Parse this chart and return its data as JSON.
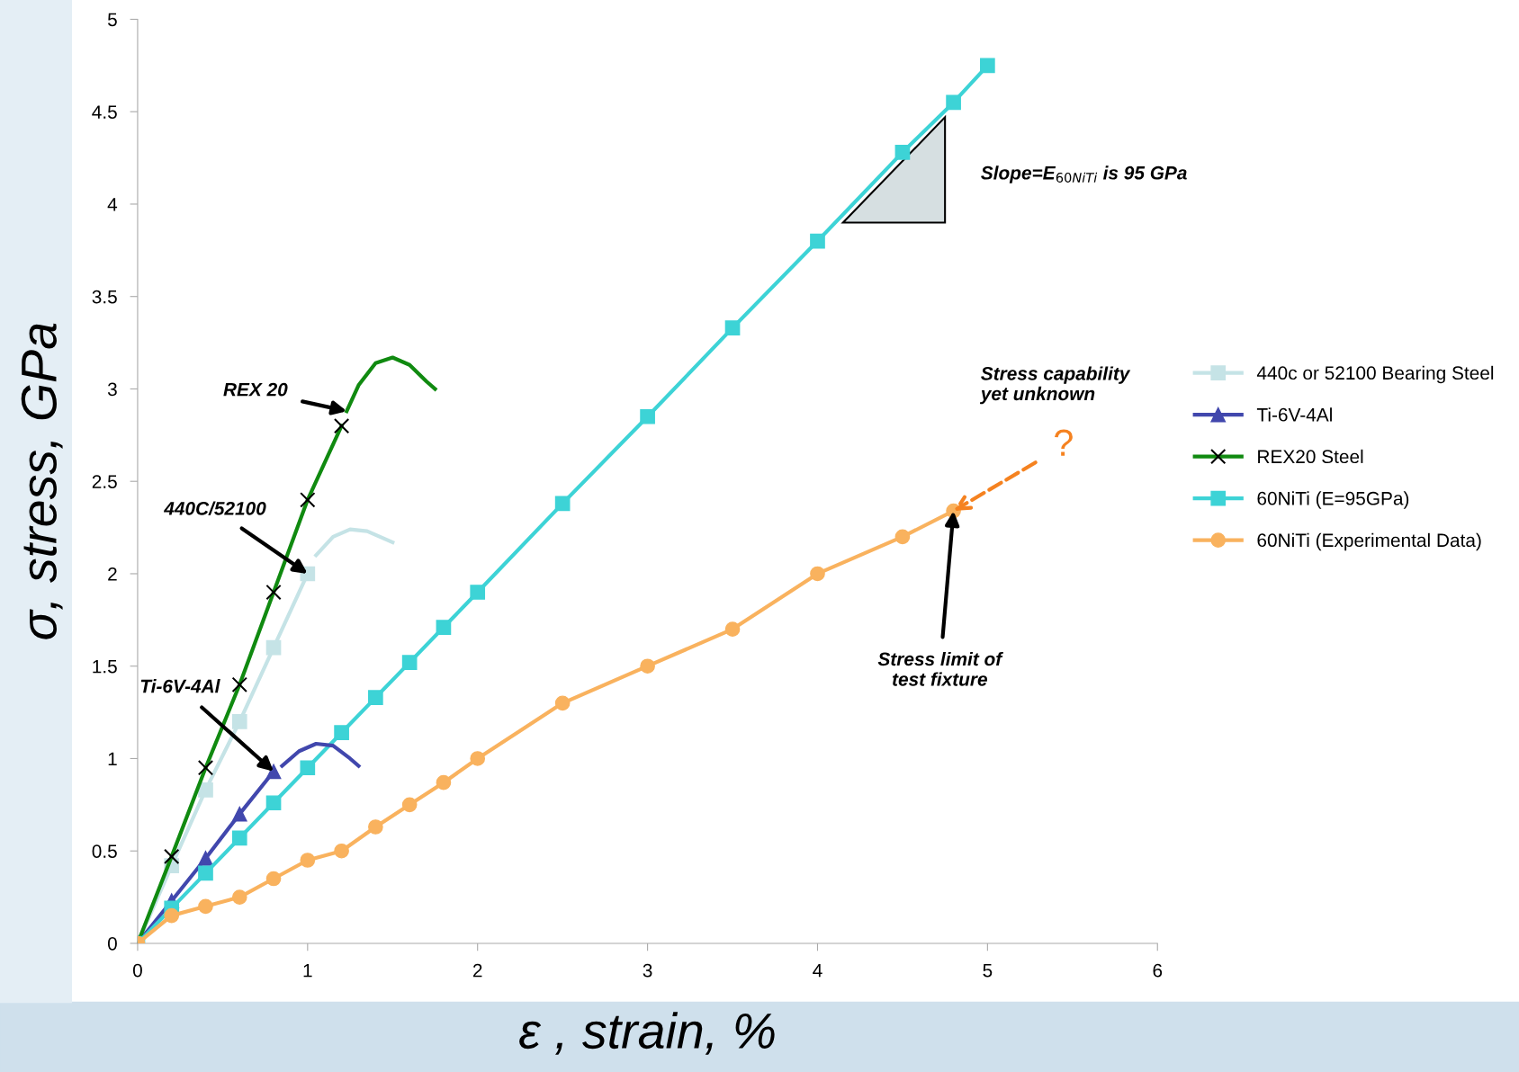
{
  "chart_data": {
    "type": "line",
    "xlabel": "ε , strain, %",
    "ylabel": "σ, stress, GPa",
    "xlim": [
      0,
      6
    ],
    "ylim": [
      0,
      5
    ],
    "xticks": [
      0,
      1,
      2,
      3,
      4,
      5,
      6
    ],
    "yticks": [
      0,
      0.5,
      1,
      1.5,
      2,
      2.5,
      3,
      3.5,
      4,
      4.5,
      5
    ],
    "grid": false,
    "legend": "right",
    "series": [
      {
        "name": "440c or 52100 Bearing Steel",
        "color": "#c5e3e6",
        "marker": "square",
        "x": [
          0,
          0.2,
          0.4,
          0.6,
          0.8,
          1.0
        ],
        "values": [
          0,
          0.42,
          0.83,
          1.2,
          1.6,
          2.0
        ]
      },
      {
        "name": "Ti-6V-4Al",
        "color": "#4147ad",
        "marker": "triangle",
        "x": [
          0,
          0.2,
          0.4,
          0.6,
          0.8
        ],
        "values": [
          0,
          0.23,
          0.46,
          0.7,
          0.93
        ]
      },
      {
        "name": "REX20 Steel",
        "color": "#108a10",
        "marker": "cross",
        "x": [
          0,
          0.2,
          0.4,
          0.6,
          0.8,
          1.0,
          1.2
        ],
        "values": [
          0,
          0.47,
          0.95,
          1.4,
          1.9,
          2.4,
          2.8
        ]
      },
      {
        "name": "60NiTi (E=95GPa)",
        "color": "#3dd3d6",
        "marker": "square",
        "x": [
          0,
          0.2,
          0.4,
          0.6,
          0.8,
          1.0,
          1.2,
          1.4,
          1.6,
          1.8,
          2.0,
          2.5,
          3.0,
          3.5,
          4.0,
          4.5,
          4.8,
          5.0
        ],
        "values": [
          0,
          0.19,
          0.38,
          0.57,
          0.76,
          0.95,
          1.14,
          1.33,
          1.52,
          1.71,
          1.9,
          2.38,
          2.85,
          3.33,
          3.8,
          4.28,
          4.55,
          4.75
        ]
      },
      {
        "name": "60NiTi (Experimental Data)",
        "color": "#f9b25e",
        "marker": "circle",
        "x": [
          0,
          0.2,
          0.4,
          0.6,
          0.8,
          1.0,
          1.2,
          1.4,
          1.6,
          1.8,
          2.0,
          2.5,
          3.0,
          3.5,
          4.0,
          4.5,
          4.8
        ],
        "values": [
          0,
          0.15,
          0.2,
          0.25,
          0.35,
          0.45,
          0.5,
          0.63,
          0.75,
          0.87,
          1.0,
          1.3,
          1.5,
          1.7,
          2.0,
          2.2,
          2.34
        ]
      },
      {
        "color": "#c5e3e6",
        "marker": "none",
        "x": [
          1.05,
          1.15,
          1.25,
          1.35,
          1.45,
          1.5
        ],
        "values": [
          2.1,
          2.2,
          2.24,
          2.23,
          2.19,
          2.17
        ]
      },
      {
        "color": "#4147ad",
        "marker": "none",
        "x": [
          0.85,
          0.95,
          1.05,
          1.15,
          1.25,
          1.3
        ],
        "values": [
          0.96,
          1.04,
          1.08,
          1.07,
          1.0,
          0.96
        ]
      },
      {
        "color": "#108a10",
        "marker": "none",
        "x": [
          1.23,
          1.3,
          1.4,
          1.5,
          1.6,
          1.7,
          1.75
        ],
        "values": [
          2.88,
          3.02,
          3.14,
          3.17,
          3.13,
          3.04,
          3.0
        ]
      }
    ],
    "annotations": [
      {
        "text": "REX 20",
        "x": 1.23,
        "y": 2.88
      },
      {
        "text": "440C/52100",
        "x": 1.0,
        "y": 2.0
      },
      {
        "text": "Ti-6V-4Al",
        "x": 0.8,
        "y": 0.93
      },
      {
        "text": "Stress limit of\ntest fixture",
        "x": 4.8,
        "y": 2.34
      },
      {
        "text": "?",
        "x": 4.8,
        "y": 2.34
      },
      "Stress capability\nyet unknown",
      "Slope=E$_{60NiTi}$ is 95 GPa"
    ]
  }
}
